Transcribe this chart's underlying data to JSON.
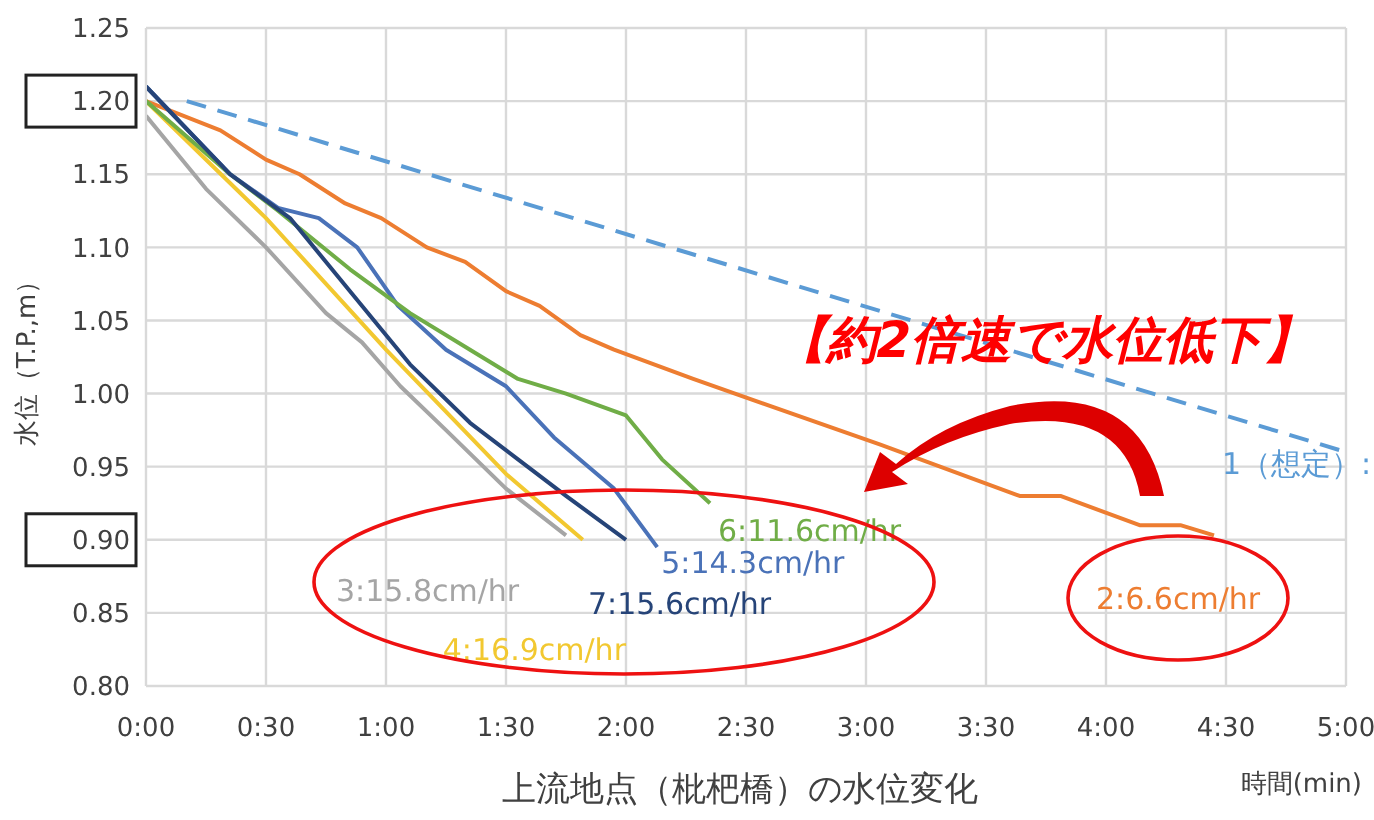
{
  "chart_data": {
    "type": "line",
    "ylabel": "水位（T.P.,m）",
    "xlabel": "時間(min)",
    "annotations": [
      "【約2倍速で水位低下】",
      "上流地点（枇杷橋）の水位変化"
    ],
    "xlim": [
      0,
      5
    ],
    "xticks": [
      {
        "value": 0,
        "label": "0:00"
      },
      {
        "value": 0.5,
        "label": "0:30"
      },
      {
        "value": 1,
        "label": "1:00"
      },
      {
        "value": 1.5,
        "label": "1:30"
      },
      {
        "value": 2,
        "label": "2:00"
      },
      {
        "value": 2.5,
        "label": "2:30"
      },
      {
        "value": 3,
        "label": "3:00"
      },
      {
        "value": 3.5,
        "label": "3:30"
      },
      {
        "value": 4,
        "label": "4:00"
      },
      {
        "value": 4.5,
        "label": "4:30"
      },
      {
        "value": 5,
        "label": "5:00"
      }
    ],
    "ylim": [
      0.8,
      1.25
    ],
    "yticks": [
      {
        "value": 0.8,
        "label": "0.80"
      },
      {
        "value": 0.85,
        "label": "0.85"
      },
      {
        "value": 0.9,
        "label": "0.90"
      },
      {
        "value": 0.95,
        "label": "0.95"
      },
      {
        "value": 1.0,
        "label": "1.00"
      },
      {
        "value": 1.05,
        "label": "1.05"
      },
      {
        "value": 1.1,
        "label": "1.10"
      },
      {
        "value": 1.15,
        "label": "1.15"
      },
      {
        "value": 1.2,
        "label": "1.20"
      },
      {
        "value": 1.25,
        "label": "1.25"
      }
    ],
    "grid": true,
    "series": [
      {
        "name": "1（想定）:",
        "color": "#5b9bd5",
        "line_style": "dashed",
        "x": [
          0.17,
          5
        ],
        "values": [
          1.2,
          0.96
        ]
      },
      {
        "name": "2:6.6cm/hr",
        "color": "#ed7d31",
        "x": [
          0,
          0.31,
          0.5,
          0.64,
          0.83,
          0.98,
          1.17,
          1.33,
          1.5,
          1.64,
          1.81,
          1.95,
          2.28,
          3.06,
          3.64,
          3.81,
          4.14,
          4.31,
          4.45
        ],
        "values": [
          1.2,
          1.18,
          1.16,
          1.15,
          1.13,
          1.12,
          1.1,
          1.09,
          1.07,
          1.06,
          1.04,
          1.03,
          1.01,
          0.965,
          0.93,
          0.93,
          0.91,
          0.91,
          0.903
        ]
      },
      {
        "name": "3:15.8cm/hr",
        "color": "#a5a5a5",
        "x": [
          0,
          0.25,
          0.5,
          0.75,
          0.9,
          1.06,
          1.25,
          1.5,
          1.75
        ],
        "values": [
          1.19,
          1.14,
          1.1,
          1.055,
          1.035,
          1.005,
          0.975,
          0.935,
          0.903
        ]
      },
      {
        "name": "4:16.9cm/hr",
        "color": "#f2c830",
        "x": [
          0,
          0.5,
          1.0,
          1.5,
          1.82
        ],
        "values": [
          1.2,
          1.12,
          1.03,
          0.945,
          0.9
        ]
      },
      {
        "name": "5:14.3cm/hr",
        "color": "#4a72b8",
        "x": [
          0,
          0.35,
          0.55,
          0.72,
          0.88,
          1.05,
          1.25,
          1.5,
          1.7,
          1.95,
          2.13
        ],
        "values": [
          1.21,
          1.15,
          1.127,
          1.12,
          1.1,
          1.06,
          1.03,
          1.005,
          0.97,
          0.935,
          0.895
        ]
      },
      {
        "name": "6:11.6cm/hr",
        "color": "#70ad47",
        "x": [
          0,
          0.35,
          0.55,
          0.85,
          1.1,
          1.35,
          1.55,
          1.75,
          2.0,
          2.15,
          2.35
        ],
        "values": [
          1.2,
          1.15,
          1.125,
          1.085,
          1.055,
          1.03,
          1.01,
          1.0,
          0.985,
          0.955,
          0.925
        ]
      },
      {
        "name": "7:15.6cm/hr",
        "color": "#264478",
        "x": [
          0,
          0.35,
          0.6,
          0.85,
          1.1,
          1.35,
          1.55,
          1.75,
          2.0
        ],
        "values": [
          1.21,
          1.15,
          1.12,
          1.07,
          1.02,
          0.98,
          0.955,
          0.93,
          0.9
        ]
      }
    ]
  }
}
